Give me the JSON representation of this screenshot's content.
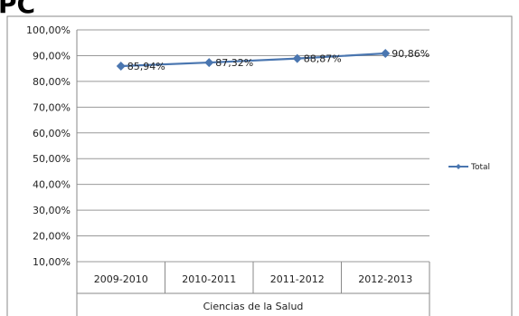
{
  "header_fragment": "PC",
  "chart_data": {
    "type": "line",
    "categories": [
      "2009-2010",
      "2010-2011",
      "2011-2012",
      "2012-2013"
    ],
    "group_label": "Ciencias de la Salud",
    "series": [
      {
        "name": "Total",
        "values": [
          85.94,
          87.32,
          88.87,
          90.86
        ],
        "labels": [
          "85,94%",
          "87,32%",
          "88,87%",
          "90,86%"
        ],
        "color": "#4a76b0"
      }
    ],
    "ylim": [
      10,
      100
    ],
    "yticks": [
      10,
      20,
      30,
      40,
      50,
      60,
      70,
      80,
      90,
      100
    ],
    "ytick_labels": [
      "10,00%",
      "20,00%",
      "30,00%",
      "40,00%",
      "50,00%",
      "60,00%",
      "70,00%",
      "80,00%",
      "90,00%",
      "100,00%"
    ],
    "grid": true,
    "legend_position": "right",
    "marker": "diamond"
  },
  "colors": {
    "series": "#4a76b0",
    "grid": "#999999",
    "frame": "#8a8a8a",
    "text": "#222222"
  }
}
